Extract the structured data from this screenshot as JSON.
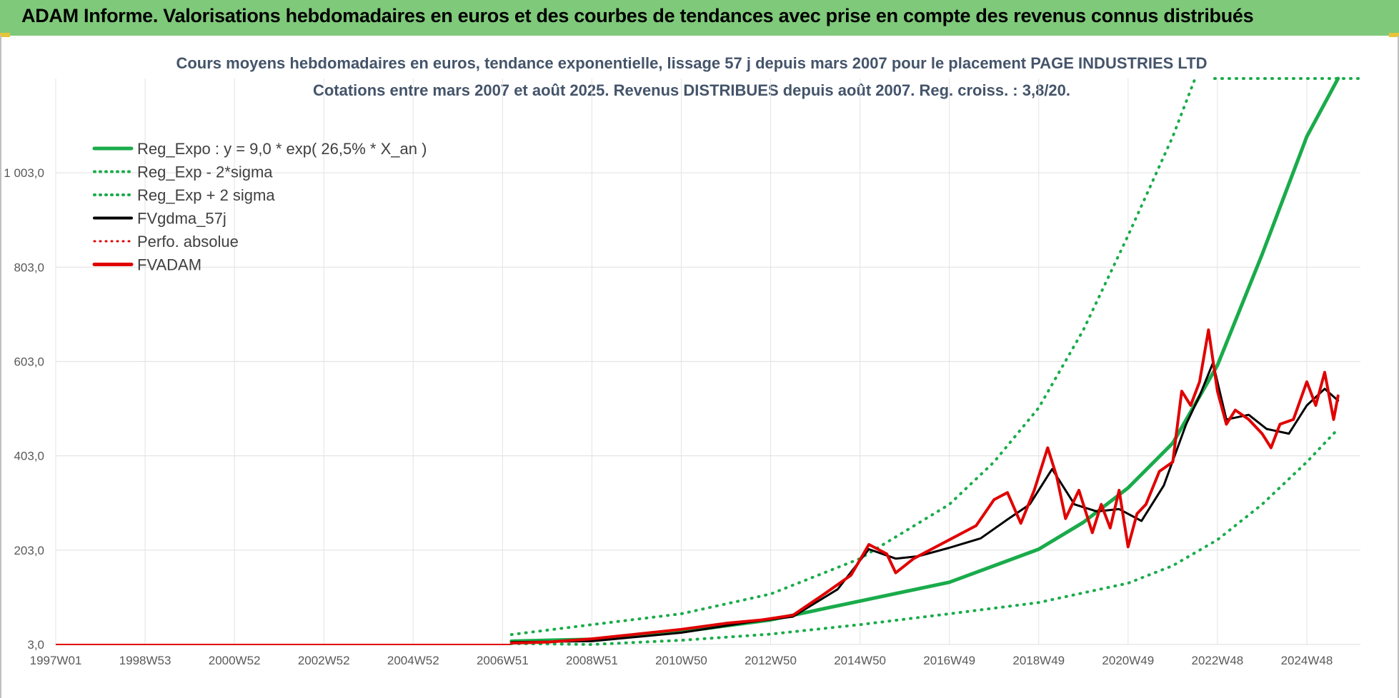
{
  "header": {
    "title": "ADAM Informe. Valorisations hebdomadaires en euros et des courbes de tendances avec prise en compte des revenus connus distribués"
  },
  "chart_data": {
    "type": "line",
    "title": "Cours moyens hebdomadaires en euros, tendance exponentielle, lissage 57 j depuis mars 2007 pour le placement PAGE INDUSTRIES LTD",
    "subtitle": "Cotations entre mars 2007 et août 2025. Revenus DISTRIBUES depuis août 2007. Reg. croiss. : 3,8/20.",
    "x_tick_labels": [
      "1997W01",
      "1998W53",
      "2000W52",
      "2002W52",
      "2004W52",
      "2006W51",
      "2008W51",
      "2010W50",
      "2012W50",
      "2014W50",
      "2016W49",
      "2018W49",
      "2020W49",
      "2022W48",
      "2024W48"
    ],
    "x_tick_years": [
      1997.0,
      1999.0,
      2001.0,
      2003.0,
      2005.0,
      2007.0,
      2009.0,
      2011.0,
      2013.0,
      2015.0,
      2017.0,
      2019.0,
      2021.0,
      2023.0,
      2025.0
    ],
    "y_tick_labels": [
      "3,0",
      "203,0",
      "403,0",
      "603,0",
      "803,0",
      "1 003,0"
    ],
    "y_ticks": [
      3,
      203,
      403,
      603,
      803,
      1003
    ],
    "ylim": [
      3,
      1203
    ],
    "xlim": [
      1997.0,
      2026.2
    ],
    "grid": true,
    "legend_position": "top-left",
    "colors": {
      "reg": "#1aab4b",
      "band": "#1aab4b",
      "fvgdma": "#000000",
      "perfo": "#e00000",
      "fvadam": "#e00000"
    },
    "legend": [
      {
        "label": "Reg_Expo : y = 9,0 * exp( 26,5% *  X_an )",
        "color": "#1aab4b",
        "style": "solid",
        "width": 5
      },
      {
        "label": "Reg_Exp - 2*sigma",
        "color": "#1aab4b",
        "style": "dotted",
        "width": 4
      },
      {
        "label": "Reg_Exp + 2 sigma",
        "color": "#1aab4b",
        "style": "dotted",
        "width": 4
      },
      {
        "label": "FVgdma_57j",
        "color": "#000000",
        "style": "solid",
        "width": 4
      },
      {
        "label": "Perfo. absolue",
        "color": "#e00000",
        "style": "dotted",
        "width": 3
      },
      {
        "label": "FVADAM",
        "color": "#e00000",
        "style": "solid",
        "width": 5
      }
    ],
    "series": [
      {
        "name": "Reg_Expo : y = 9,0 * exp( 26,5% *  X_an )",
        "x": [
          2007.2,
          2009,
          2011,
          2013,
          2015,
          2017,
          2019,
          2020,
          2021,
          2022,
          2023,
          2024,
          2025,
          2025.7
        ],
        "y": [
          10,
          14,
          30,
          55,
          95,
          135,
          205,
          262,
          335,
          430,
          595,
          830,
          1080,
          1203
        ]
      },
      {
        "name": "Reg_Exp - 2*sigma",
        "x": [
          2007.2,
          2009,
          2011,
          2013,
          2015,
          2017,
          2019,
          2021,
          2022,
          2023,
          2024,
          2025,
          2025.7
        ],
        "y": [
          5,
          3,
          12,
          25,
          45,
          68,
          92,
          133,
          170,
          225,
          300,
          390,
          460
        ]
      },
      {
        "name": "Reg_Exp + 2 sigma",
        "x": [
          2007.2,
          2009,
          2011,
          2013,
          2015,
          2017,
          2018,
          2019,
          2020,
          2021,
          2022,
          2022.5
        ],
        "y": [
          24,
          45,
          68,
          110,
          185,
          300,
          390,
          505,
          670,
          870,
          1080,
          1203
        ]
      },
      {
        "name": "FVgdma_57j",
        "x": [
          2007.2,
          2009,
          2011,
          2012.5,
          2013.5,
          2014.5,
          2015.2,
          2015.8,
          2016.3,
          2017,
          2017.7,
          2018.3,
          2018.8,
          2019.3,
          2019.8,
          2020.3,
          2020.8,
          2021.3,
          2021.8,
          2022.3,
          2022.6,
          2022.9,
          2023.2,
          2023.7,
          2024.1,
          2024.6,
          2025.0,
          2025.4,
          2025.7
        ],
        "y": [
          8,
          10,
          28,
          50,
          62,
          120,
          205,
          185,
          190,
          208,
          228,
          268,
          300,
          375,
          300,
          285,
          290,
          265,
          340,
          470,
          530,
          600,
          480,
          490,
          460,
          450,
          510,
          545,
          520
        ]
      },
      {
        "name": "FVADAM",
        "x": [
          2007.2,
          2008,
          2009,
          2010,
          2011,
          2012,
          2012.8,
          2013.5,
          2014.2,
          2014.8,
          2015.2,
          2015.6,
          2015.8,
          2016.2,
          2016.5,
          2017,
          2017.6,
          2018.0,
          2018.3,
          2018.6,
          2018.9,
          2019.2,
          2019.4,
          2019.6,
          2019.9,
          2020.2,
          2020.4,
          2020.6,
          2020.8,
          2021.0,
          2021.2,
          2021.4,
          2021.7,
          2022.0,
          2022.2,
          2022.4,
          2022.6,
          2022.8,
          2023.0,
          2023.2,
          2023.4,
          2023.7,
          2024.0,
          2024.2,
          2024.4,
          2024.7,
          2025.0,
          2025.2,
          2025.4,
          2025.6,
          2025.7
        ],
        "y": [
          6,
          8,
          15,
          25,
          35,
          48,
          55,
          65,
          110,
          150,
          215,
          195,
          155,
          185,
          200,
          225,
          255,
          310,
          325,
          260,
          330,
          420,
          360,
          270,
          330,
          240,
          300,
          250,
          330,
          210,
          280,
          300,
          370,
          390,
          540,
          510,
          560,
          670,
          540,
          470,
          500,
          480,
          450,
          420,
          470,
          480,
          560,
          510,
          580,
          480,
          530
        ]
      }
    ]
  }
}
